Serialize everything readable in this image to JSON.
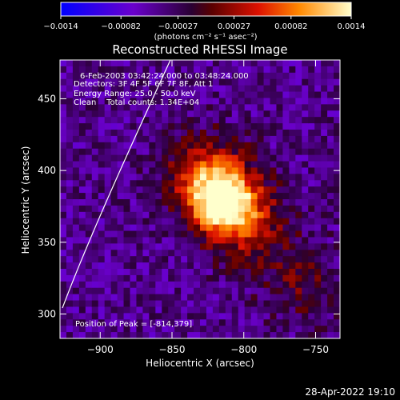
{
  "chart_data": {
    "type": "heatmap",
    "title": "Reconstructed RHESSI Image",
    "xlabel": "Heliocentric X (arcsec)",
    "ylabel": "Heliocentric Y (arcsec)",
    "xlim": [
      -928,
      -733
    ],
    "ylim": [
      283,
      477
    ],
    "x_ticks": [
      -900,
      -850,
      -800,
      -750
    ],
    "x_tick_labels": [
      "−900",
      "−850",
      "−800",
      "−750"
    ],
    "y_ticks": [
      300,
      350,
      400,
      450
    ],
    "y_tick_labels": [
      "300",
      "350",
      "400",
      "450"
    ],
    "colorbar": {
      "vmin": -0.0014,
      "vmax": 0.0014,
      "tick_values": [
        -0.0014,
        -0.00082,
        -0.00027,
        0.00027,
        0.00082,
        0.0014
      ],
      "tick_labels": [
        "−0.0014",
        "−0.00082",
        "−0.00027",
        "0.00027",
        "0.00082",
        "0.0014"
      ],
      "unit_label": "(photons cm⁻² s⁻¹ asec⁻²)"
    },
    "peak": {
      "x": -814,
      "y": 379,
      "value": 0.0014
    },
    "secondary_sources": [
      {
        "x": -828,
        "y": 398,
        "value": 0.0008
      },
      {
        "x": -795,
        "y": 360,
        "value": 0.0006
      },
      {
        "x": -760,
        "y": 320,
        "value": 0.0004
      }
    ],
    "annotations": {
      "time": "6-Feb-2003 03:42:24.000 to 03:48:24.000",
      "detectors": "Detectors: 3F 4F 5F 6F 7F 8F, Att 1",
      "energy": "Energy Range: 25.0 - 50.0 keV",
      "clean": "Clean    Total counts: 1.34E+04",
      "peak_position": "Position of Peak = [-814,379]"
    },
    "grid": false
  },
  "footer": {
    "timestamp": "28-Apr-2022 19:10"
  },
  "colors": {
    "background": "#000000",
    "text": "#ffffff"
  }
}
